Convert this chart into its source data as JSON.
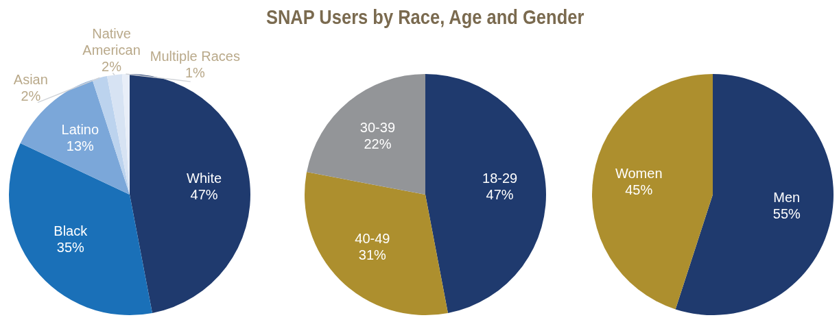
{
  "chart_data": [
    {
      "type": "pie",
      "categories": [
        "White",
        "Black",
        "Latino",
        "Asian",
        "Native American",
        "Multiple Races"
      ],
      "values": [
        47,
        35,
        13,
        2,
        2,
        1
      ],
      "value_labels": [
        "47%",
        "35%",
        "13%",
        "2%",
        "2%",
        "1%"
      ],
      "colors": [
        "#1f3a6e",
        "#1a70b8",
        "#7ba7d9",
        "#bcd3ee",
        "#d7e3f3",
        "#e8eef8"
      ],
      "legend": false
    },
    {
      "type": "pie",
      "title": "SNAP Users by Race, Age and Gender",
      "categories": [
        "18-29",
        "40-49",
        "30-39"
      ],
      "values": [
        47,
        31,
        22
      ],
      "value_labels": [
        "47%",
        "31%",
        "22%"
      ],
      "colors": [
        "#1f3a6e",
        "#ad8f2e",
        "#939598"
      ],
      "legend": false
    },
    {
      "type": "pie",
      "categories": [
        "Men",
        "Women"
      ],
      "values": [
        55,
        45
      ],
      "value_labels": [
        "55%",
        "45%"
      ],
      "colors": [
        "#1f3a6e",
        "#ad8f2e"
      ],
      "legend": false
    }
  ]
}
